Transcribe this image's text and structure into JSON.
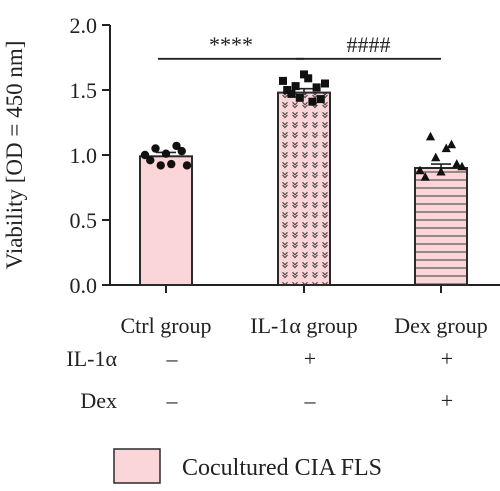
{
  "chart_data": {
    "type": "bar",
    "ylabel": "Viability [OD = 450 nm]",
    "ylim": [
      0.0,
      2.0
    ],
    "yticks": [
      0.0,
      0.5,
      1.0,
      1.5,
      2.0
    ],
    "ytick_labels": [
      "0.0",
      "0.5",
      "1.0",
      "1.5",
      "2.0"
    ],
    "categories": [
      "Ctrl group",
      "IL-1α group",
      "Dex group"
    ],
    "values": [
      0.99,
      1.48,
      0.9
    ],
    "errors": [
      0.03,
      0.03,
      0.03
    ],
    "points": [
      [
        1.0,
        0.96,
        1.05,
        0.92,
        1.01,
        0.93,
        1.07,
        1.03,
        0.92
      ],
      [
        1.57,
        1.5,
        1.47,
        1.53,
        1.44,
        1.62,
        1.59,
        1.41,
        1.52,
        1.43,
        1.55
      ],
      [
        0.88,
        0.83,
        1.14,
        0.98,
        0.87,
        1.05,
        1.08,
        0.93,
        0.91
      ]
    ],
    "point_markers": [
      "circle",
      "square",
      "triangle"
    ],
    "bar_patterns": [
      "solid",
      "hearts",
      "stripes"
    ],
    "bar_fill_color": "#fbd6d8",
    "bar_edge_color": "#2a2a2a",
    "significance": [
      {
        "from": 0,
        "to": 1,
        "label": "****",
        "height": 1.74
      },
      {
        "from": 1,
        "to": 2,
        "label": "####",
        "height": 1.74
      }
    ],
    "condition_table": {
      "rows": [
        {
          "label": "IL-1α",
          "values": [
            "–",
            "+",
            "+"
          ]
        },
        {
          "label": "Dex",
          "values": [
            "–",
            "–",
            "+"
          ]
        }
      ]
    },
    "legend": {
      "label": "Cocultured CIA FLS",
      "position": "bottom"
    }
  }
}
